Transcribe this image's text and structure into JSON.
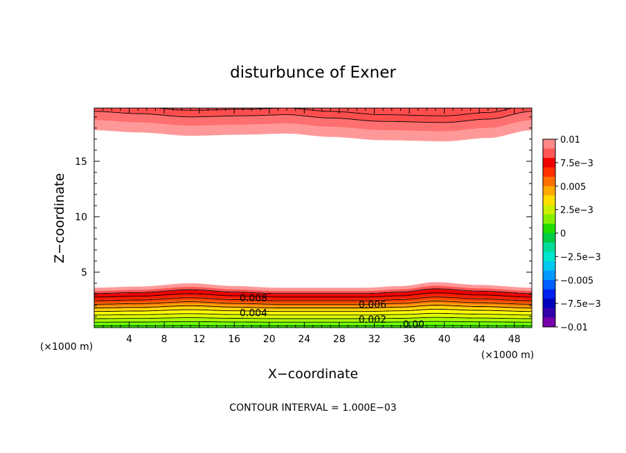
{
  "chart_data": {
    "type": "heatmap",
    "title": "disturbunce of Exner",
    "xlabel": "X−coordinate",
    "ylabel": "Z−coordinate",
    "x_unit": "(×1000 m)",
    "y_unit": "(×1000 m)",
    "xlim": [
      0,
      50
    ],
    "ylim": [
      0,
      19.8
    ],
    "x_ticks": [
      "4",
      "8",
      "12",
      "16",
      "20",
      "24",
      "28",
      "32",
      "36",
      "40",
      "44",
      "48"
    ],
    "y_ticks": [
      "5",
      "10",
      "15"
    ],
    "footer": "CONTOUR INTERVAL = 1.000E−03",
    "colorbar": {
      "range": [
        -0.01,
        0.01
      ],
      "tick_labels": [
        "0.01",
        "7.5e−3",
        "0.005",
        "2.5e−3",
        "0",
        "−2.5e−3",
        "−0.005",
        "−7.5e−3",
        "−0.01"
      ],
      "colors": [
        "#ff8888",
        "#ff5555",
        "#ee0000",
        "#ff3000",
        "#ff7000",
        "#ffaa00",
        "#ffdd00",
        "#ccee00",
        "#88ee00",
        "#22dd00",
        "#00cc44",
        "#00dd99",
        "#00e5cc",
        "#00c8ee",
        "#0099ff",
        "#0060ff",
        "#0020ee",
        "#0000bb",
        "#3300aa",
        "#7700aa"
      ]
    },
    "fill_colors": [
      "#44ff00",
      "#77ff00",
      "#aaff00",
      "#ddff00",
      "#ffff00",
      "#ffdd00",
      "#ffaa00",
      "#ff7700",
      "#ff4000",
      "#ff1a00",
      "#ee0000",
      "#ff5555",
      "#ff9999"
    ],
    "lower_contours": [
      0.0,
      0.001,
      0.002,
      0.003,
      0.004,
      0.005,
      0.006,
      0.007,
      0.008,
      0.009
    ],
    "lower_profile_x": [
      0,
      5,
      11,
      16,
      21,
      26,
      31,
      35,
      39,
      44,
      50
    ],
    "lower_profile_z": [
      3.6,
      3.7,
      4.0,
      3.75,
      3.6,
      3.6,
      3.6,
      3.75,
      4.1,
      3.85,
      3.6
    ],
    "upper_profile_x": [
      0,
      5,
      11,
      17,
      22,
      27,
      33,
      40,
      45,
      50
    ],
    "upper_profile_z": [
      17.8,
      17.6,
      17.3,
      17.4,
      17.5,
      17.2,
      16.9,
      16.8,
      17.1,
      17.8
    ],
    "contour_labels": [
      {
        "text": "0.008",
        "x": 18.2,
        "z": 2.7
      },
      {
        "text": "0.004",
        "x": 18.2,
        "z": 1.35
      },
      {
        "text": "0.006",
        "x": 31.8,
        "z": 2.1
      },
      {
        "text": "0.002",
        "x": 31.8,
        "z": 0.75
      },
      {
        "text": "0.00",
        "x": 36.5,
        "z": 0.3
      }
    ]
  }
}
